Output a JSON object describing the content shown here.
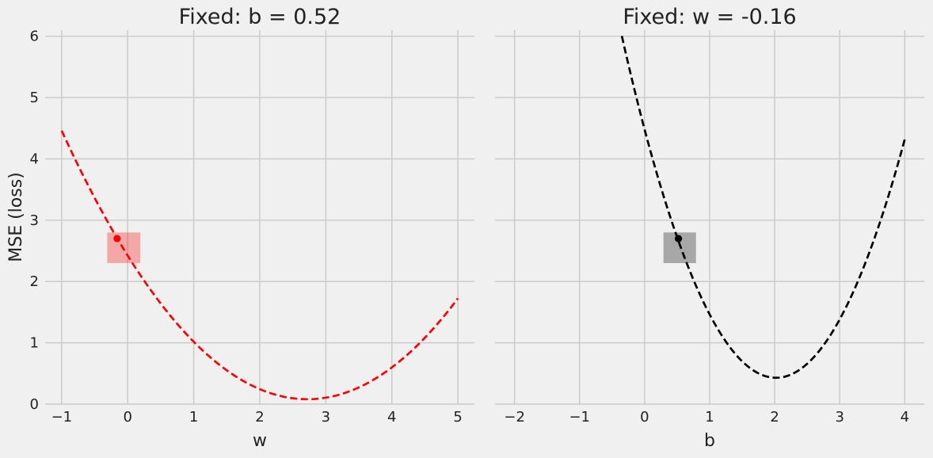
{
  "chart_data": [
    {
      "type": "line",
      "title": "Fixed: b = 0.52",
      "xlabel": "w",
      "ylabel": "MSE (loss)",
      "xlim": [
        -1.25,
        5.25
      ],
      "ylim": [
        0,
        6.1
      ],
      "xticks": [
        -1,
        0,
        1,
        2,
        3,
        4,
        5
      ],
      "yticks": [
        0,
        1,
        2,
        3,
        4,
        5,
        6
      ],
      "grid": true,
      "series": [
        {
          "style": "dashed",
          "color": "#ff0000",
          "x": [
            -1,
            -0.5,
            0,
            0.5,
            1,
            1.5,
            2,
            2.5,
            2.72,
            3,
            3.5,
            4,
            4.5,
            5
          ],
          "y": [
            4.46,
            3.51,
            2.69,
            1.97,
            1.02,
            0.67,
            0.26,
            0.1,
            0.08,
            0.12,
            0.31,
            0.62,
            1.12,
            1.73
          ],
          "curve": {
            "kind": "quadratic",
            "vertex_x": 2.72,
            "vertex_y": 0.08,
            "end_x": -1,
            "end_y": 4.46,
            "xmin": -1,
            "xmax": 5
          }
        }
      ],
      "point": {
        "x": -0.16,
        "y": 2.7,
        "color": "#ff0000"
      },
      "highlight_box": {
        "x0": -0.31,
        "x1": 0.19,
        "y0": 2.3,
        "y1": 2.8,
        "color": "#ff0000"
      }
    },
    {
      "type": "line",
      "title": "Fixed: w = -0.16",
      "xlabel": "b",
      "ylabel": "",
      "xlim": [
        -2.3,
        4.3
      ],
      "ylim": [
        0,
        6.1
      ],
      "xticks": [
        -2,
        -1,
        0,
        1,
        2,
        3,
        4
      ],
      "yticks": [
        0,
        1,
        2,
        3,
        4,
        5,
        6
      ],
      "grid": true,
      "series": [
        {
          "style": "dashed",
          "color": "#000000",
          "x": [
            -0.35,
            0,
            0.5,
            1,
            1.5,
            2,
            2.5,
            3,
            3.5,
            4
          ],
          "y": [
            6.1,
            4.75,
            2.71,
            1.49,
            0.77,
            0.43,
            0.61,
            1.3,
            2.54,
            4.32
          ],
          "curve": {
            "kind": "quadratic",
            "vertex_x": 2.02,
            "vertex_y": 0.43,
            "end_x": 4,
            "end_y": 4.32,
            "xmin": -0.35,
            "xmax": 4
          }
        }
      ],
      "point": {
        "x": 0.52,
        "y": 2.7,
        "color": "#000000"
      },
      "highlight_box": {
        "x0": 0.29,
        "x1": 0.79,
        "y0": 2.3,
        "y1": 2.8,
        "color": "#000000"
      }
    }
  ]
}
